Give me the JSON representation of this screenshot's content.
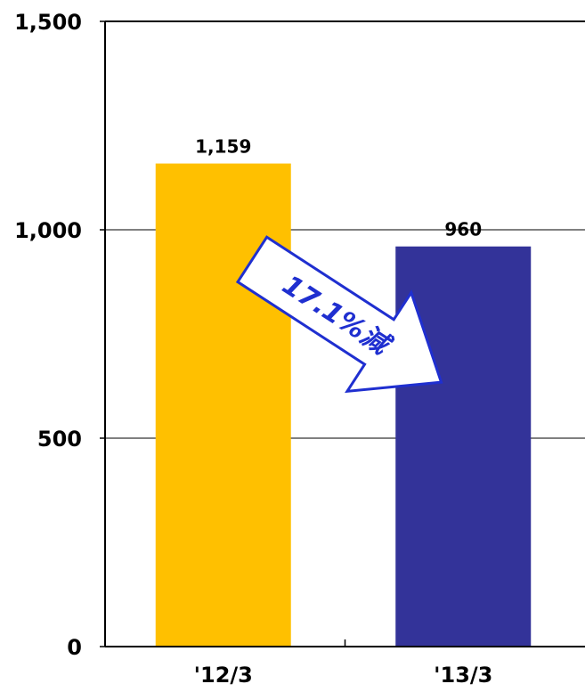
{
  "chart_data": {
    "type": "bar",
    "categories": [
      "'12/3",
      "'13/3"
    ],
    "values": [
      1159,
      960
    ],
    "value_labels": [
      "1,159",
      "960"
    ],
    "colors": [
      "#ffc000",
      "#333399"
    ],
    "ylim": [
      0,
      1500
    ],
    "yticks": [
      0,
      500,
      1000,
      1500
    ],
    "ytick_labels": [
      "0",
      "500",
      "1,000",
      "1,500"
    ],
    "grid": true,
    "title": "",
    "xlabel": "",
    "ylabel": "",
    "annotation": {
      "text": "17.1%減",
      "arrow_color": "#ffffff",
      "arrow_border": "#1f2fd0",
      "text_color": "#1f2fd0"
    }
  }
}
